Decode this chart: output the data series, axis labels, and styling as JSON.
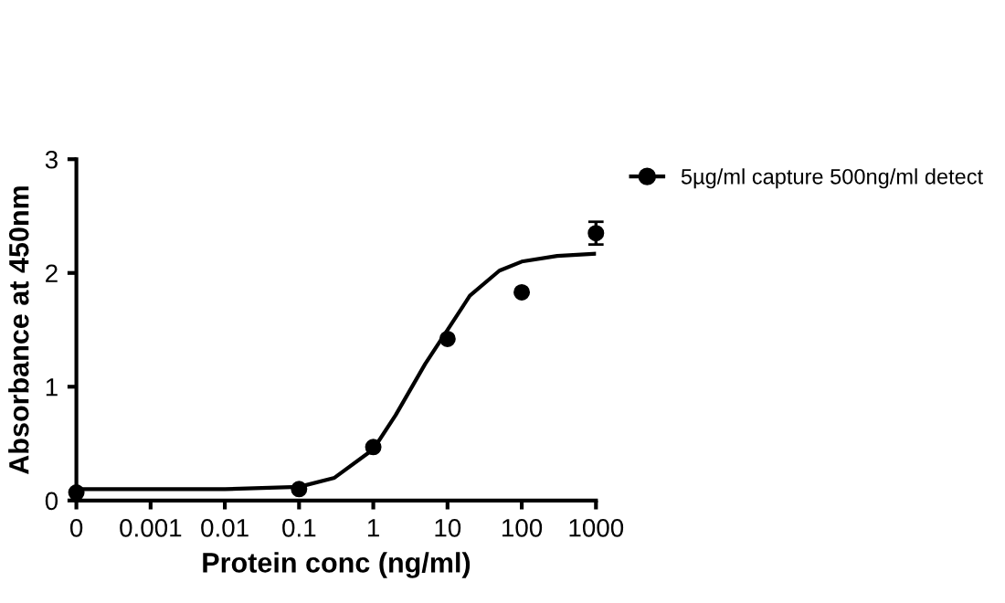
{
  "chart_data": {
    "type": "scatter",
    "xlabel": "Protein conc (ng/ml)",
    "ylabel": "Absorbance at 450nm",
    "log": "x",
    "xlim": [
      0.0001,
      1000
    ],
    "xticks": [
      {
        "value": 0.0001,
        "label": "0"
      },
      0.001,
      0.01,
      0.1,
      1,
      10,
      100,
      1000
    ],
    "ylim": [
      0,
      3
    ],
    "yticks": [
      0,
      1,
      2,
      3
    ],
    "grid": false,
    "legend": "top right",
    "series": [
      {
        "name": "5µg/ml capture 500ng/ml detect",
        "color": "#000000",
        "marker": "circle",
        "x": [
          0.0001,
          0.1,
          1,
          10,
          100,
          1000
        ],
        "values": [
          0.07,
          0.1,
          0.47,
          1.42,
          1.83,
          2.35
        ],
        "errors": [
          null,
          null,
          null,
          null,
          null,
          0.1
        ]
      },
      {
        "type": "line",
        "color": "#000000",
        "marker": "none",
        "line_style": "solid",
        "x": [
          0.0001,
          0.001,
          0.01,
          0.1,
          0.3,
          1,
          2,
          5,
          10,
          20,
          50,
          100,
          300,
          1000
        ],
        "values": [
          0.1,
          0.1,
          0.1,
          0.12,
          0.2,
          0.45,
          0.75,
          1.2,
          1.5,
          1.8,
          2.02,
          2.1,
          2.15,
          2.17
        ]
      }
    ]
  }
}
